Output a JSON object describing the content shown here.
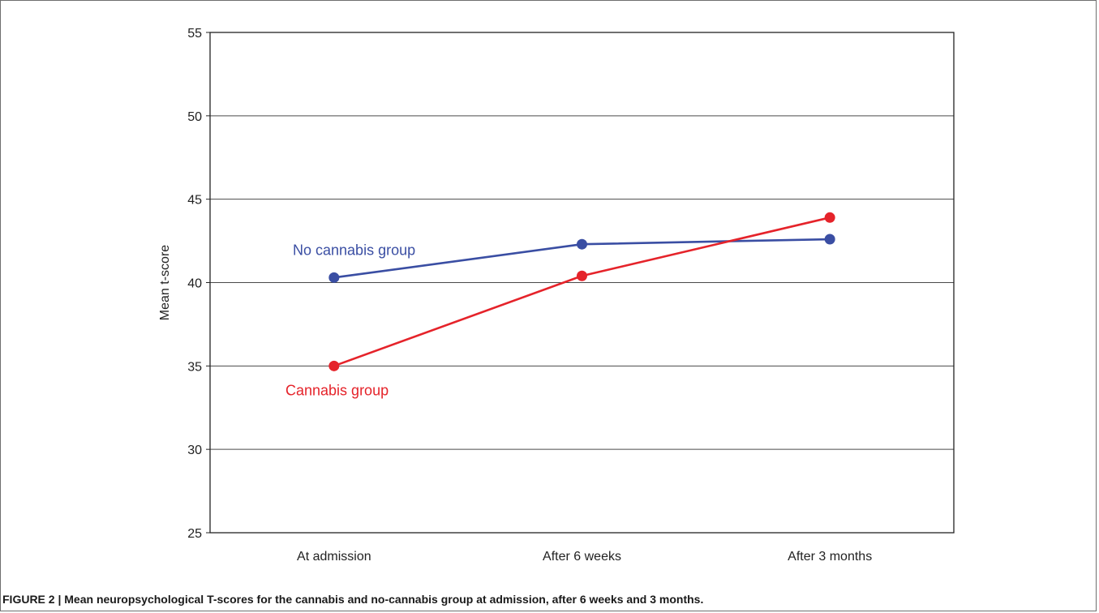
{
  "caption": "FIGURE 2 | Mean neuropsychological T-scores for the cannabis and no-cannabis group at admission, after 6 weeks and 3 months.",
  "chart_data": {
    "type": "line",
    "title": "",
    "xlabel": "",
    "ylabel": "Mean t-score",
    "categories": [
      "At admission",
      "After 6 weeks",
      "After 3 months"
    ],
    "ylim": [
      25,
      55
    ],
    "yticks": [
      25,
      30,
      35,
      40,
      45,
      50,
      55
    ],
    "grid": true,
    "series": [
      {
        "name": "No cannabis group",
        "values": [
          40.3,
          42.3,
          42.6
        ],
        "color": "#3a4ea3"
      },
      {
        "name": "Cannabis group",
        "values": [
          35.0,
          40.4,
          43.9
        ],
        "color": "#e5232a"
      }
    ]
  }
}
